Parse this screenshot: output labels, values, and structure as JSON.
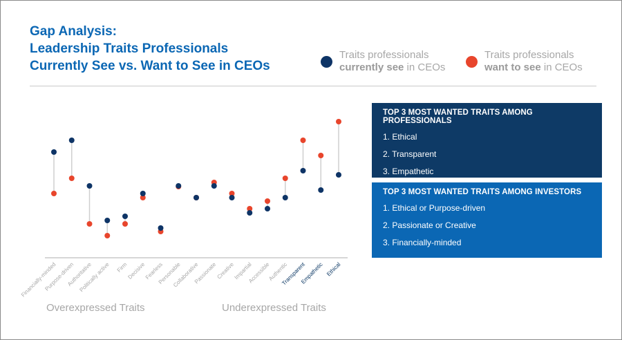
{
  "header": {
    "title_lines": [
      "Gap Analysis:",
      "Leadership Traits Professionals",
      "Currently See vs. Want to See in CEOs"
    ]
  },
  "legend": [
    {
      "line1": "Traits professionals",
      "bold": "currently see",
      "rest": " in CEOs",
      "color": "#0e3466"
    },
    {
      "line1": "Traits professionals",
      "bold": "want to see",
      "rest": " in CEOs",
      "color": "#e8452c"
    }
  ],
  "panels": {
    "professionals": {
      "heading": "TOP 3 MOST WANTED TRAITS AMONG PROFESSIONALS",
      "items": [
        "1. Ethical",
        "2. Transparent",
        "3. Empathetic"
      ]
    },
    "investors": {
      "heading": "TOP 3 MOST WANTED TRAITS AMONG INVESTORS",
      "items": [
        "1. Ethical or Purpose-driven",
        "2. Passionate or Creative",
        "3. Financially-minded"
      ]
    }
  },
  "footer": {
    "left": "Overexpressed Traits",
    "right": "Underexpressed Traits"
  },
  "chart_data": {
    "type": "dumbbell",
    "title": "Gap Analysis: Leadership Traits Professionals Currently See vs. Want to See in CEOs",
    "ylim": [
      0,
      100
    ],
    "grid": false,
    "categories": [
      "Financially-minded",
      "Purpose-driven",
      "Authoritative",
      "Politically active",
      "Firm",
      "Decisive",
      "Fearless",
      "Personable",
      "Collaborative",
      "Passionate",
      "Creative",
      "Impartial",
      "Accessible",
      "Authentic",
      "Transparent",
      "Empathetic",
      "Ethical"
    ],
    "highlighted": [
      "Transparent",
      "Empathetic",
      "Ethical"
    ],
    "series": [
      {
        "name": "Traits professionals currently see in CEOs",
        "color": "#0e3466",
        "values": [
          76.5,
          85,
          52,
          27,
          30,
          46.5,
          21.5,
          52,
          43.5,
          52,
          43.5,
          32.5,
          35.5,
          43.5,
          63,
          49,
          60
        ]
      },
      {
        "name": "Traits professionals want to see in CEOs",
        "color": "#e8452c",
        "values": [
          46.5,
          57.5,
          24.5,
          16,
          24.5,
          43.5,
          19,
          51.5,
          43.5,
          54.5,
          46.5,
          35.5,
          41,
          57.5,
          85,
          74,
          98.5
        ]
      }
    ]
  }
}
